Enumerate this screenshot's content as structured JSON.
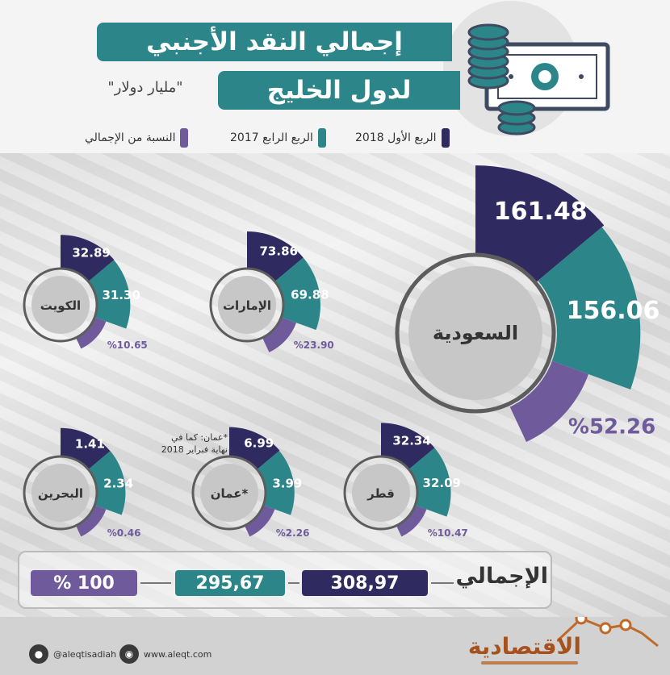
{
  "title_line1": "إجمالي النقد الأجنبي",
  "title_line2": "لدول الخليج",
  "subtitle": "\"مليار دولار\"",
  "legend": {
    "q1_2018": "الربع الأول 2018",
    "q4_2017": "الربع الرابع 2017",
    "share": "النسبة من الإجمالي"
  },
  "colors": {
    "q1_2018": "#2f2a5f",
    "q4_2017": "#2c8689",
    "share": "#6f5a9c"
  },
  "oman_note": "*عمان: كما في نهاية فبراير 2018",
  "chart_data": {
    "type": "table",
    "unit": "مليار دولار",
    "series": [
      {
        "name": "الربع الأول 2018",
        "key": "q1_2018"
      },
      {
        "name": "الربع الرابع 2017",
        "key": "q4_2017"
      },
      {
        "name": "النسبة من الإجمالي",
        "key": "share"
      }
    ],
    "countries": [
      {
        "id": "saudi",
        "name": "السعودية",
        "q1_2018": "161.48",
        "q4_2017": "156.06",
        "share": "%52.26"
      },
      {
        "id": "uae",
        "name": "الإمارات",
        "q1_2018": "73.86",
        "q4_2017": "69.88",
        "share": "%23.90"
      },
      {
        "id": "kuwait",
        "name": "الكويت",
        "q1_2018": "32.89",
        "q4_2017": "31.30",
        "share": "%10.65"
      },
      {
        "id": "qatar",
        "name": "قطر",
        "q1_2018": "32.34",
        "q4_2017": "32.09",
        "share": "%10.47"
      },
      {
        "id": "oman",
        "name": "*عمان",
        "q1_2018": "6.99",
        "q4_2017": "3.99",
        "share": "%2.26"
      },
      {
        "id": "bahrain",
        "name": "البحرين",
        "q1_2018": "1.41",
        "q4_2017": "2.34",
        "share": "%0.46"
      }
    ],
    "total": {
      "label": "الإجمالي",
      "q1_2018": "308,97",
      "q4_2017": "295,67",
      "share": "% 100"
    }
  },
  "footer": {
    "twitter": "@aleqtisadiah",
    "website": "www.aleqt.com",
    "brand": "الاقتصادية"
  }
}
